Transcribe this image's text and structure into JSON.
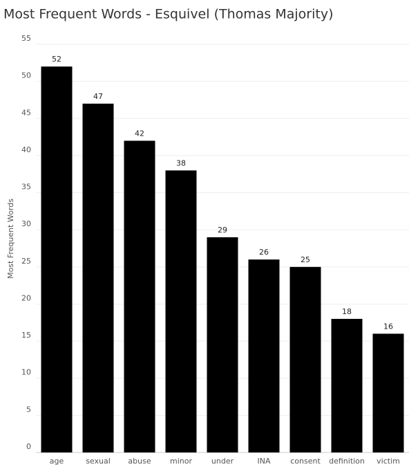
{
  "chart_data": {
    "type": "bar",
    "title": "Most Frequent Words - Esquivel (Thomas Majority)",
    "y_label": "Most Frequent Words",
    "categories": [
      "age",
      "sexual",
      "abuse",
      "minor",
      "under",
      "INA",
      "consent",
      "definition",
      "victim"
    ],
    "values": [
      52,
      47,
      42,
      38,
      29,
      26,
      25,
      18,
      16
    ],
    "color": "#000000",
    "ylim": [
      0,
      55
    ],
    "yticks": [
      0,
      5,
      10,
      15,
      20,
      25,
      30,
      35,
      40,
      45,
      50,
      55
    ],
    "grid": true
  }
}
